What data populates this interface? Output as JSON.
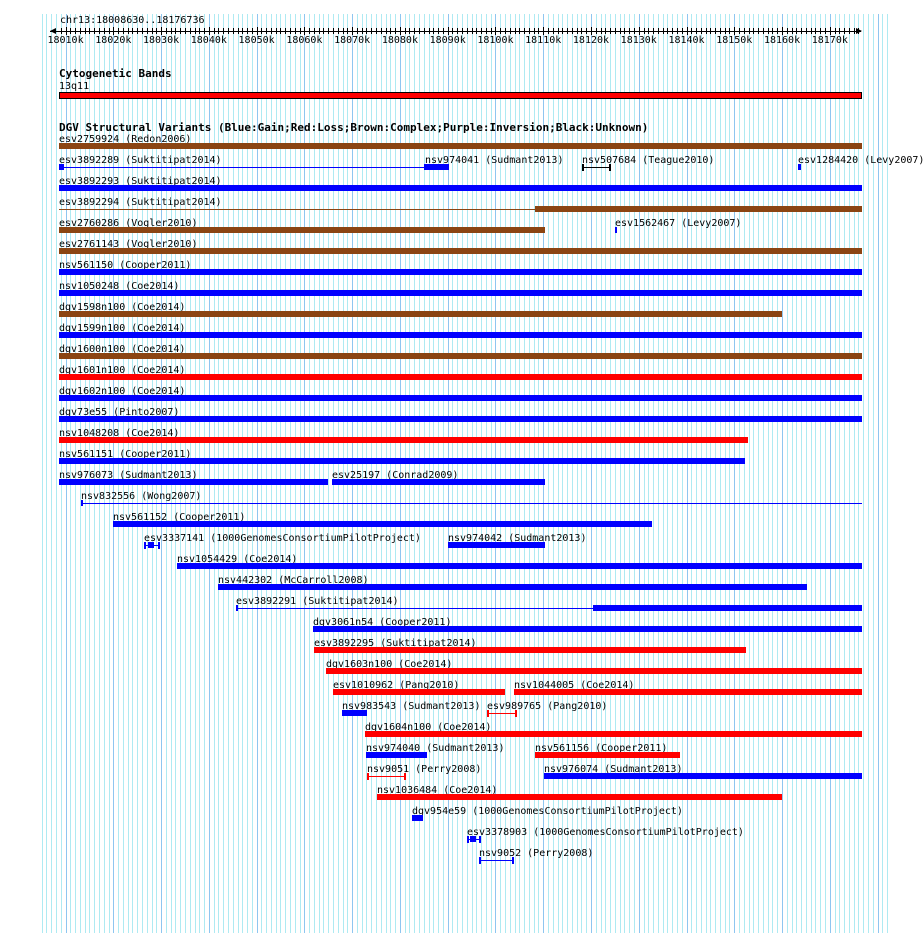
{
  "region": "chr13:18008630..18176736",
  "view": {
    "start_kb": 18008.63,
    "end_kb": 18176.74
  },
  "axis_labels": [
    "18010k",
    "18020k",
    "18030k",
    "18040k",
    "18050k",
    "18060k",
    "18070k",
    "18080k",
    "18090k",
    "18100k",
    "18110k",
    "18120k",
    "18130k",
    "18140k",
    "18150k",
    "18160k",
    "18170k"
  ],
  "colors": {
    "gain": "#0000ff",
    "loss": "#ff0000",
    "complex": "#8b4513",
    "unknown": "#000000",
    "minor_grid": "#aeeaf2",
    "major_grid": "#8ec6f0"
  },
  "cytoband": {
    "title": "Cytogenetic Bands",
    "band": "13q11",
    "color": "#ff0000"
  },
  "dgv": {
    "title": "DGV Structural Variants (Blue:Gain;Red:Loss;Brown:Complex;Purple:Inversion;Black:Unknown)",
    "rows": [
      [
        {
          "label": "esv2759924 (Redon2006)",
          "color": "complex",
          "parts": [
            [
              18008.63,
              18176.74,
              "thick"
            ]
          ]
        }
      ],
      [
        {
          "label": "esv3892289 (Suktitipat2014)",
          "color": "gain",
          "parts": [
            [
              18008.63,
              18009.68,
              "thick"
            ],
            [
              18009.68,
              18085.04,
              "line"
            ],
            [
              18085.04,
              18090.27,
              "thick"
            ]
          ]
        },
        {
          "label": "nsv974041 (Sudmant2013)",
          "color": "gain",
          "labelOnly": true,
          "at": 18085.25
        },
        {
          "label": "nsv507684 (Teague2010)",
          "color": "unknown",
          "parts": [
            [
              18118.11,
              18124.18,
              "ibeam"
            ]
          ]
        },
        {
          "label": "esv1284420 (Levy2007)",
          "color": "gain",
          "parts": [
            [
              18163.33,
              18163.96,
              "thick"
            ]
          ]
        }
      ],
      [
        {
          "label": "esv3892293 (Suktitipat2014)",
          "color": "gain",
          "parts": [
            [
              18008.63,
              18176.74,
              "thick"
            ]
          ]
        }
      ],
      [
        {
          "label": "esv3892294 (Suktitipat2014)",
          "color": "complex",
          "parts": [
            [
              18008.63,
              18108.27,
              "line"
            ],
            [
              18108.27,
              18176.74,
              "thick"
            ]
          ]
        }
      ],
      [
        {
          "label": "esv2760286 (Vogler2010)",
          "color": "complex",
          "parts": [
            [
              18008.63,
              18110.37,
              "thick"
            ]
          ]
        },
        {
          "label": "esv1562467 (Levy2007)",
          "color": "gain",
          "parts": [
            [
              18125.02,
              18125.44,
              "thick"
            ]
          ]
        }
      ],
      [
        {
          "label": "esv2761143 (Vogler2010)",
          "color": "complex",
          "parts": [
            [
              18008.63,
              18176.74,
              "thick"
            ]
          ]
        }
      ],
      [
        {
          "label": "nsv561150 (Cooper2011)",
          "color": "gain",
          "parts": [
            [
              18008.63,
              18176.74,
              "thick"
            ]
          ]
        }
      ],
      [
        {
          "label": "nsv1050248 (Coe2014)",
          "color": "gain",
          "parts": [
            [
              18008.63,
              18176.74,
              "thick"
            ]
          ]
        }
      ],
      [
        {
          "label": "dgv1598n100 (Coe2014)",
          "color": "complex",
          "parts": [
            [
              18008.63,
              18159.98,
              "thick"
            ]
          ]
        }
      ],
      [
        {
          "label": "dgv1599n100 (Coe2014)",
          "color": "gain",
          "parts": [
            [
              18008.63,
              18176.74,
              "thick"
            ]
          ]
        }
      ],
      [
        {
          "label": "dgv1600n100 (Coe2014)",
          "color": "complex",
          "parts": [
            [
              18008.63,
              18176.74,
              "thick"
            ]
          ]
        }
      ],
      [
        {
          "label": "dgv1601n100 (Coe2014)",
          "color": "loss",
          "parts": [
            [
              18008.63,
              18176.74,
              "thick"
            ]
          ]
        }
      ],
      [
        {
          "label": "dgv1602n100 (Coe2014)",
          "color": "gain",
          "parts": [
            [
              18008.63,
              18176.74,
              "thick"
            ]
          ]
        }
      ],
      [
        {
          "label": "dgv73e55 (Pinto2007)",
          "color": "gain",
          "parts": [
            [
              18008.63,
              18176.74,
              "thick"
            ]
          ]
        }
      ],
      [
        {
          "label": "nsv1048208 (Coe2014)",
          "color": "loss",
          "parts": [
            [
              18008.63,
              18152.87,
              "thick"
            ]
          ]
        }
      ],
      [
        {
          "label": "nsv561151 (Cooper2011)",
          "color": "gain",
          "parts": [
            [
              18008.63,
              18152.24,
              "thick"
            ]
          ]
        }
      ],
      [
        {
          "label": "nsv976073 (Sudmant2013)",
          "color": "gain",
          "parts": [
            [
              18008.63,
              18064.94,
              "thick"
            ]
          ]
        },
        {
          "label": "esv25197 (Conrad2009)",
          "color": "gain",
          "parts": [
            [
              18065.78,
              18110.37,
              "thick"
            ]
          ]
        }
      ],
      [
        {
          "label": "nsv832556 (Wong2007)",
          "color": "gain",
          "parts": [
            [
              18013.24,
              18013.5,
              "ibeamstart"
            ],
            [
              18013.24,
              18176.74,
              "line"
            ]
          ]
        }
      ],
      [
        {
          "label": "nsv561152 (Cooper2011)",
          "color": "gain",
          "parts": [
            [
              18019.93,
              18132.77,
              "thick"
            ]
          ]
        }
      ],
      [
        {
          "label": "esv3337141 (1000GenomesConsortiumPilotProject)",
          "color": "gain",
          "parts": [
            [
              18026.42,
              18029.77,
              "ibeam"
            ],
            [
              18027.3,
              18028.5,
              "thick"
            ]
          ]
        },
        {
          "label": "nsv974042 (Sudmant2013)",
          "color": "gain",
          "parts": [
            [
              18090.06,
              18110.37,
              "thick"
            ]
          ]
        }
      ],
      [
        {
          "label": "nsv1054429 (Coe2014)",
          "color": "gain",
          "parts": [
            [
              18033.33,
              18176.74,
              "thick"
            ]
          ]
        }
      ],
      [
        {
          "label": "nsv442302 (McCarroll2008)",
          "color": "gain",
          "parts": [
            [
              18041.91,
              18165.22,
              "thick"
            ]
          ]
        }
      ],
      [
        {
          "label": "esv3892291 (Suktitipat2014)",
          "color": "gain",
          "parts": [
            [
              18045.68,
              18045.9,
              "ibeamstart"
            ],
            [
              18045.68,
              18120.42,
              "line"
            ],
            [
              18120.42,
              18176.74,
              "thick"
            ]
          ]
        }
      ],
      [
        {
          "label": "dgv3061n54 (Cooper2011)",
          "color": "gain",
          "parts": [
            [
              18061.8,
              18176.74,
              "thick"
            ]
          ]
        }
      ],
      [
        {
          "label": "esv3892295 (Suktitipat2014)",
          "color": "loss",
          "parts": [
            [
              18062.01,
              18152.45,
              "thick"
            ]
          ]
        }
      ],
      [
        {
          "label": "dgv1603n100 (Coe2014)",
          "color": "loss",
          "parts": [
            [
              18064.52,
              18176.74,
              "thick"
            ]
          ]
        }
      ],
      [
        {
          "label": "esv1010962 (Pang2010)",
          "color": "loss",
          "parts": [
            [
              18065.99,
              18101.99,
              "thick"
            ]
          ]
        },
        {
          "label": "nsv1044005 (Coe2014)",
          "color": "loss",
          "parts": [
            [
              18103.88,
              18176.74,
              "thick"
            ]
          ]
        }
      ],
      [
        {
          "label": "nsv983543 (Sudmant2013)",
          "color": "gain",
          "parts": [
            [
              18067.87,
              18073.11,
              "thick"
            ]
          ]
        },
        {
          "label": "esv989765 (Pang2010)",
          "color": "loss",
          "parts": [
            [
              18098.23,
              18104.51,
              "ibeam"
            ]
          ]
        }
      ],
      [
        {
          "label": "dgv1604n100 (Coe2014)",
          "color": "loss",
          "parts": [
            [
              18072.69,
              18176.74,
              "thick"
            ]
          ]
        }
      ],
      [
        {
          "label": "nsv974040 (Sudmant2013)",
          "color": "gain",
          "parts": [
            [
              18072.9,
              18085.67,
              "thick"
            ]
          ]
        },
        {
          "label": "nsv561156 (Cooper2011)",
          "color": "loss",
          "parts": [
            [
              18108.27,
              18138.63,
              "thick"
            ]
          ]
        }
      ],
      [
        {
          "label": "nsv9051 (Perry2008)",
          "color": "loss",
          "parts": [
            [
              18073.11,
              18081.27,
              "ibeam"
            ]
          ]
        },
        {
          "label": "nsv976074 (Sudmant2013)",
          "color": "gain",
          "parts": [
            [
              18110.16,
              18176.74,
              "thick"
            ]
          ]
        }
      ],
      [
        {
          "label": "nsv1036484 (Coe2014)",
          "color": "loss",
          "parts": [
            [
              18075.2,
              18159.98,
              "thick"
            ]
          ]
        }
      ],
      [
        {
          "label": "dgv954e59 (1000GenomesConsortiumPilotProject)",
          "color": "gain",
          "parts": [
            [
              18082.53,
              18084.83,
              "thick"
            ]
          ]
        }
      ],
      [
        {
          "label": "esv3378903 (1000GenomesConsortiumPilotProject)",
          "color": "gain",
          "parts": [
            [
              18093.95,
              18096.88,
              "ibeam"
            ],
            [
              18094.6,
              18095.9,
              "thick"
            ]
          ]
        }
      ],
      [
        {
          "label": "nsv9052 (Perry2008)",
          "color": "gain",
          "parts": [
            [
              18096.46,
              18103.79,
              "ibeam"
            ]
          ]
        }
      ]
    ]
  }
}
